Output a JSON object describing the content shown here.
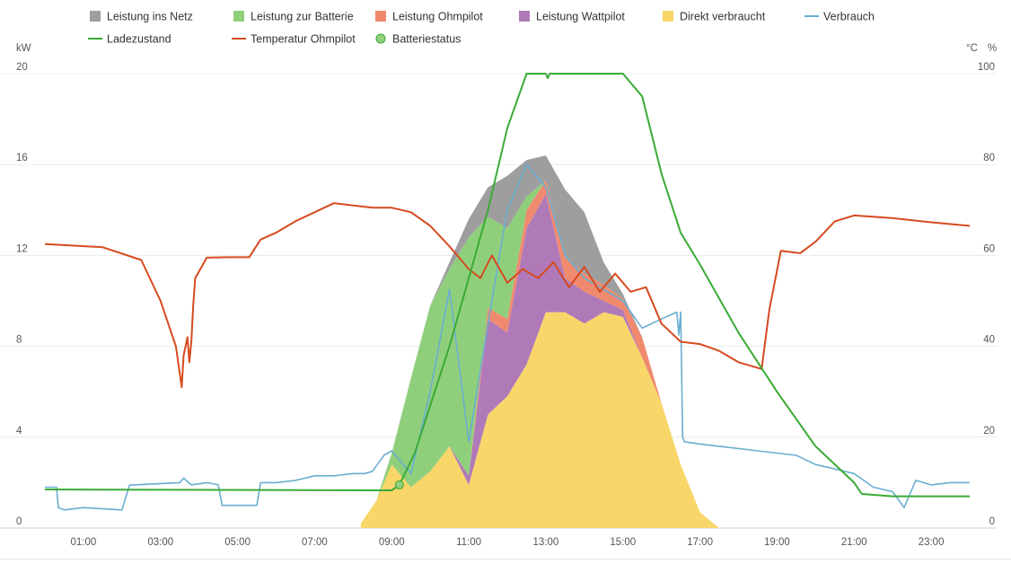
{
  "chart_data": {
    "type": "area",
    "x_ticks": [
      "01:00",
      "03:00",
      "05:00",
      "07:00",
      "09:00",
      "11:00",
      "13:00",
      "15:00",
      "17:00",
      "19:00",
      "21:00",
      "23:00"
    ],
    "y_left": {
      "unit": "kW",
      "min": 0,
      "max": 20,
      "ticks": [
        "0",
        "4",
        "8",
        "12",
        "16",
        "20"
      ]
    },
    "y_right": {
      "units": [
        "°C",
        "%"
      ],
      "min": 0,
      "max": 100,
      "ticks": [
        "0",
        "20",
        "40",
        "60",
        "80",
        "100"
      ]
    },
    "grid": true,
    "legend_position": "top",
    "legend": [
      {
        "key": "netz",
        "label": "Leistung ins Netz",
        "color": "#9e9e9e",
        "kind": "square"
      },
      {
        "key": "batterie",
        "label": "Leistung zur Batterie",
        "color": "#8fcf7c",
        "kind": "square"
      },
      {
        "key": "ohmpilot",
        "label": "Leistung Ohmpilot",
        "color": "#ef8a6f",
        "kind": "square"
      },
      {
        "key": "wattpilot",
        "label": "Leistung Wattpilot",
        "color": "#b07ab8",
        "kind": "square"
      },
      {
        "key": "direkt",
        "label": "Direkt verbraucht",
        "color": "#f8d66a",
        "kind": "square"
      },
      {
        "key": "verbrauch",
        "label": "Verbrauch",
        "color": "#6aaed0",
        "kind": "line"
      },
      {
        "key": "ladezustand",
        "label": "Ladezustand",
        "color": "#3aaa35",
        "kind": "line"
      },
      {
        "key": "temperatur",
        "label": "Temperatur Ohmpilot",
        "color": "#d64a1f",
        "kind": "line"
      },
      {
        "key": "batteriestatus",
        "label": "Batteriestatus",
        "color": "#8fd07c",
        "kind": "dot"
      }
    ],
    "stacked_kw": {
      "x_hours": [
        8.2,
        8.6,
        9.0,
        9.5,
        10.0,
        10.5,
        11.0,
        11.5,
        12.0,
        12.5,
        13.0,
        13.5,
        14.0,
        14.5,
        15.0,
        15.5,
        16.0,
        16.5,
        17.0,
        17.5
      ],
      "direkt": [
        0.2,
        1.2,
        2.8,
        1.8,
        2.5,
        3.6,
        1.9,
        5.0,
        5.8,
        7.2,
        9.5,
        9.5,
        9.0,
        9.5,
        9.3,
        7.5,
        5.5,
        2.8,
        0.7,
        0.0
      ],
      "wattpilot": [
        0.0,
        0.0,
        0.0,
        0.0,
        0.0,
        0.0,
        0.4,
        4.2,
        2.8,
        6.0,
        5.2,
        1.5,
        1.4,
        0.5,
        0.3,
        0.0,
        0.0,
        0.0,
        0.0,
        0.0
      ],
      "ohmpilot": [
        0.0,
        0.0,
        0.0,
        0.0,
        0.0,
        0.0,
        0.0,
        0.5,
        0.6,
        0.8,
        0.6,
        0.9,
        0.8,
        0.7,
        0.5,
        0.9,
        0.0,
        0.0,
        0.0,
        0.0
      ],
      "batterie": [
        0.0,
        0.0,
        0.5,
        4.8,
        7.3,
        7.8,
        10.5,
        4.0,
        4.0,
        0.6,
        0.0,
        0.0,
        0.0,
        0.0,
        0.0,
        0.0,
        0.0,
        0.0,
        0.0,
        0.0
      ],
      "netz": [
        0.0,
        0.0,
        0.0,
        0.0,
        0.0,
        0.3,
        0.8,
        1.3,
        2.3,
        1.6,
        1.1,
        3.0,
        2.7,
        1.0,
        0.2,
        0.0,
        0.0,
        0.0,
        0.0,
        0.0
      ]
    },
    "verbrauch_kw": {
      "x_hours": [
        0.0,
        0.3,
        0.35,
        0.5,
        1.0,
        2.0,
        2.2,
        2.3,
        3.5,
        3.6,
        3.8,
        4.2,
        4.5,
        4.6,
        5.0,
        5.5,
        5.6,
        6.0,
        6.5,
        7.0,
        7.5,
        8.0,
        8.3,
        8.5,
        8.8,
        9.0,
        9.5,
        10.0,
        10.5,
        11.0,
        11.5,
        12.0,
        12.5,
        13.0,
        13.5,
        14.0,
        14.5,
        15.0,
        15.5,
        16.0,
        16.4,
        16.45,
        16.5,
        16.55,
        16.6,
        17.0,
        17.5,
        18.0,
        18.5,
        19.0,
        19.5,
        20.0,
        20.5,
        21.0,
        21.5,
        22.0,
        22.3,
        22.6,
        23.0,
        23.5,
        24.0
      ],
      "values": [
        1.8,
        1.8,
        0.9,
        0.8,
        0.9,
        0.8,
        1.9,
        1.9,
        2.0,
        2.2,
        1.9,
        2.0,
        1.9,
        1.0,
        1.0,
        1.0,
        2.0,
        2.0,
        2.1,
        2.3,
        2.3,
        2.4,
        2.4,
        2.5,
        3.2,
        3.4,
        2.4,
        6.0,
        10.5,
        3.8,
        9.0,
        14.0,
        16.0,
        15.0,
        12.0,
        11.0,
        10.5,
        10.0,
        8.8,
        9.2,
        9.5,
        8.5,
        9.5,
        4.0,
        3.8,
        3.7,
        3.6,
        3.5,
        3.4,
        3.3,
        3.2,
        2.8,
        2.6,
        2.4,
        1.8,
        1.6,
        0.9,
        2.1,
        1.9,
        2.0,
        2.0
      ]
    },
    "ladezustand_pct": {
      "x_hours": [
        0.0,
        9.0,
        9.2,
        9.6,
        10.0,
        10.5,
        11.0,
        11.5,
        12.0,
        12.5,
        13.0,
        13.05,
        13.1,
        15.0,
        15.5,
        16.0,
        16.5,
        17.0,
        18.0,
        19.0,
        20.0,
        21.0,
        21.2,
        22.0,
        24.0
      ],
      "values": [
        8.5,
        8.3,
        9.5,
        16.5,
        27.0,
        40.0,
        55.0,
        70.0,
        88.0,
        100.0,
        100.0,
        99.0,
        100.0,
        100.0,
        95.0,
        78.0,
        65.0,
        58.0,
        43.0,
        30.0,
        18.0,
        10.0,
        7.5,
        7.0,
        7.0
      ]
    },
    "temperatur_c": {
      "x_hours": [
        0.0,
        1.5,
        2.5,
        3.0,
        3.4,
        3.55,
        3.6,
        3.7,
        3.75,
        3.8,
        3.85,
        3.9,
        4.2,
        4.8,
        5.3,
        5.6,
        6.0,
        6.5,
        7.0,
        7.5,
        8.0,
        8.5,
        9.0,
        9.5,
        10.0,
        10.5,
        11.0,
        11.3,
        11.6,
        12.0,
        12.4,
        12.8,
        13.2,
        13.6,
        14.0,
        14.4,
        14.8,
        15.2,
        15.6,
        16.0,
        16.5,
        17.0,
        17.5,
        18.0,
        18.6,
        18.8,
        19.1,
        19.6,
        20.0,
        20.5,
        21.0,
        22.0,
        23.0,
        24.0
      ],
      "values": [
        62.5,
        61.8,
        59.0,
        50.0,
        40.0,
        31.0,
        38.0,
        42.0,
        36.5,
        41.0,
        49.0,
        55.0,
        59.5,
        59.6,
        59.6,
        63.5,
        65.0,
        67.5,
        69.5,
        71.5,
        71.0,
        70.5,
        70.5,
        69.5,
        66.5,
        62.0,
        57.0,
        55.0,
        60.0,
        54.0,
        57.0,
        55.0,
        58.5,
        53.0,
        57.5,
        52.0,
        56.0,
        52.0,
        53.0,
        45.0,
        41.0,
        40.5,
        39.0,
        36.5,
        35.0,
        48.0,
        61.0,
        60.5,
        63.0,
        67.5,
        68.8,
        68.2,
        67.3,
        66.5
      ]
    },
    "batteriestatus_marker": {
      "x_hour": 9.2,
      "value_pct": 9.5
    }
  }
}
